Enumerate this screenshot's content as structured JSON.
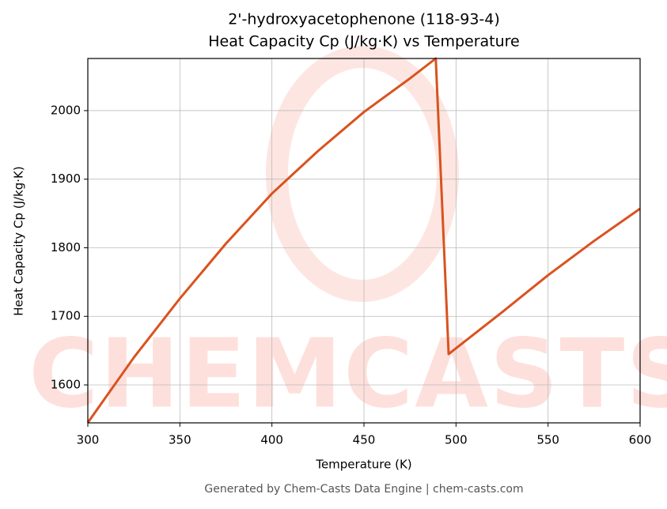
{
  "chart_data": {
    "type": "line",
    "title": "2'-hydroxyacetophenone (118-93-4)",
    "subtitle": "Heat Capacity Cp (J/kg·K) vs Temperature",
    "x_label": "Temperature (K)",
    "y_label": "Heat Capacity Cp (J/kg·K)",
    "watermark": "CHEMCASTS",
    "footer": "Generated by Chem-Casts Data Engine | chem-casts.com",
    "x": [
      300,
      325,
      350,
      375,
      400,
      425,
      450,
      475,
      489,
      496,
      525,
      550,
      575,
      600
    ],
    "series": [
      {
        "name": "Cp",
        "color": "#d9531e",
        "values": [
          1545,
          1640,
          1726,
          1806,
          1879,
          1941,
          1998,
          2047,
          2076,
          1645,
          1706,
          1760,
          1810,
          1857
        ]
      }
    ],
    "xlim": [
      300,
      600
    ],
    "ylim": [
      1544.7,
      2076
    ],
    "xticks": [
      300,
      350,
      400,
      450,
      500,
      550,
      600
    ],
    "yticks": [
      1600,
      1700,
      1800,
      1900,
      2000
    ],
    "grid": true
  }
}
